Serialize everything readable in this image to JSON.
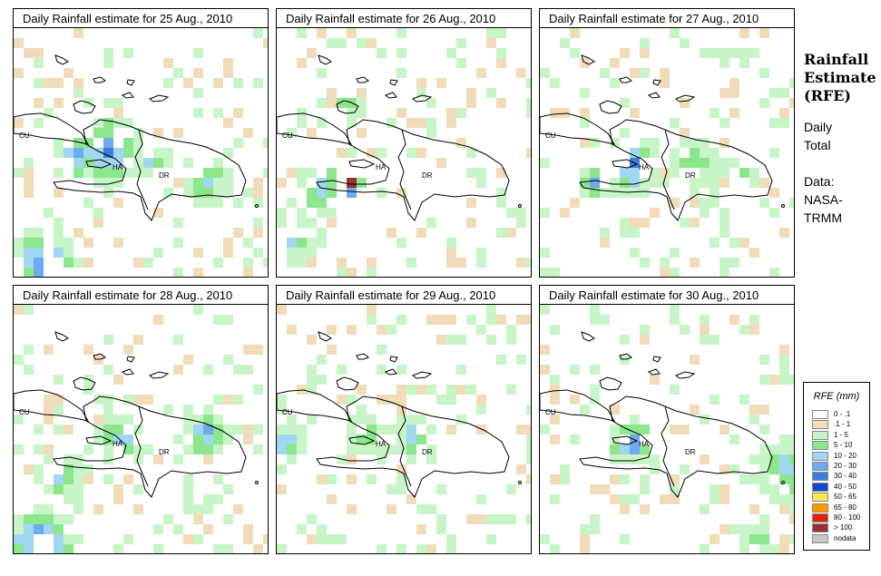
{
  "panels": [
    {
      "title": "Daily Rainfall estimate for  25 Aug., 2010",
      "labels": {
        "cuba": "CU",
        "haiti": "HA",
        "dr": "DR"
      }
    },
    {
      "title": "Daily Rainfall estimate for  26 Aug., 2010",
      "labels": {
        "cuba": "CU",
        "haiti": "HA",
        "dr": "DR"
      }
    },
    {
      "title": "Daily Rainfall estimate for  27 Aug., 2010",
      "labels": {
        "cuba": "CU",
        "haiti": "HA",
        "dr": "DR"
      }
    },
    {
      "title": "Daily Rainfall estimate for  28 Aug., 2010",
      "labels": {
        "cuba": "CU",
        "haiti": "HA",
        "dr": "DR"
      }
    },
    {
      "title": "Daily Rainfall estimate for  29 Aug., 2010",
      "labels": {
        "cuba": "CU",
        "haiti": "HA",
        "dr": "DR"
      }
    },
    {
      "title": "Daily Rainfall estimate for  30 Aug., 2010",
      "labels": {
        "cuba": "CU",
        "haiti": "HA",
        "dr": "DR"
      }
    }
  ],
  "side": {
    "title_line1": "Rainfall",
    "title_line2": "Estimate",
    "title_line3": "(RFE)",
    "period_line1": "Daily",
    "period_line2": "Total",
    "source_line1": "Data:",
    "source_line2": "NASA-",
    "source_line3": "TRMM"
  },
  "legend": {
    "title": "RFE (mm)",
    "items": [
      {
        "label": "0 - .1",
        "color": "#ffffff"
      },
      {
        "label": ".1 - 1",
        "color": "#f0dcb9"
      },
      {
        "label": "1 - 5",
        "color": "#c8f5c8"
      },
      {
        "label": "5 - 10",
        "color": "#8ce68c"
      },
      {
        "label": "10 - 20",
        "color": "#a0d7f0"
      },
      {
        "label": "20 - 30",
        "color": "#6eaaf0"
      },
      {
        "label": "30 - 40",
        "color": "#3c7ddc"
      },
      {
        "label": "40 - 50",
        "color": "#1446c8"
      },
      {
        "label": "50 - 65",
        "color": "#ffe650"
      },
      {
        "label": "65 - 80",
        "color": "#ff9600"
      },
      {
        "label": "80 - 100",
        "color": "#dc2800"
      },
      {
        "label": "> 100",
        "color": "#963232"
      },
      {
        "label": "nodata",
        "color": "#c8c8c8"
      }
    ]
  }
}
